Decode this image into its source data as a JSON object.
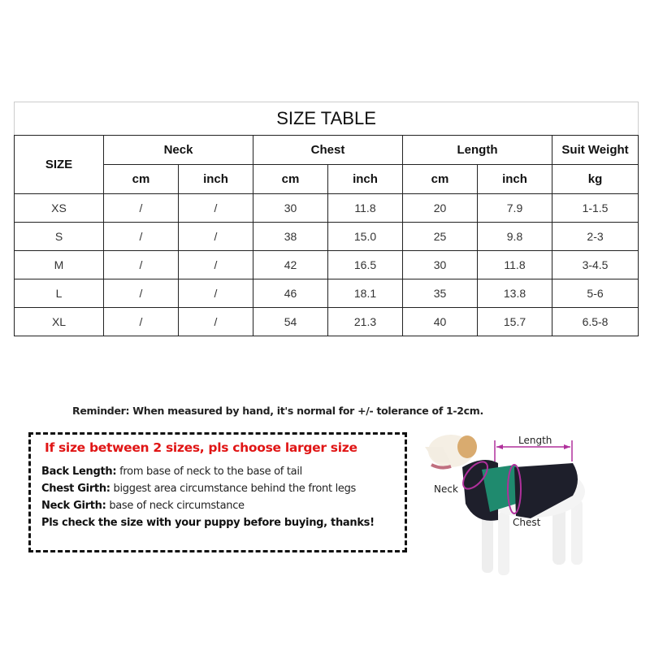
{
  "table": {
    "title": "SIZE TABLE",
    "size_header": "SIZE",
    "groups": [
      "Neck",
      "Chest",
      "Length",
      "Suit Weight"
    ],
    "units": [
      "cm",
      "inch",
      "cm",
      "inch",
      "cm",
      "inch",
      "kg"
    ],
    "rows": [
      [
        "XS",
        "/",
        "/",
        "30",
        "11.8",
        "20",
        "7.9",
        "1-1.5"
      ],
      [
        "S",
        "/",
        "/",
        "38",
        "15.0",
        "25",
        "9.8",
        "2-3"
      ],
      [
        "M",
        "/",
        "/",
        "42",
        "16.5",
        "30",
        "11.8",
        "3-4.5"
      ],
      [
        "L",
        "/",
        "/",
        "46",
        "18.1",
        "35",
        "13.8",
        "5-6"
      ],
      [
        "XL",
        "/",
        "/",
        "54",
        "21.3",
        "40",
        "15.7",
        "6.5-8"
      ]
    ]
  },
  "reminder": "Reminder: When measured by hand, it's normal for +/- tolerance of 1-2cm.",
  "notice": {
    "warning": "If size between  2 sizes, pls choose larger size",
    "back_length_label": "Back Length:",
    "back_length_text": " from base of neck to the base of tail",
    "chest_girth_label": "Chest Girth:",
    "chest_girth_text": " biggest area circumstance behind the front legs",
    "neck_girth_label": "Neck Girth:",
    "neck_girth_text": " base of neck circumstance",
    "closing": "Pls check the size with your puppy before buying, thanks!"
  },
  "diagram": {
    "length_label": "Length",
    "neck_label": "Neck",
    "chest_label": "Chest",
    "colors": {
      "marker": "#b0309c",
      "warning": "#e01515",
      "vest_dark": "#1e1f2b",
      "vest_green": "#1f8a6e"
    }
  }
}
